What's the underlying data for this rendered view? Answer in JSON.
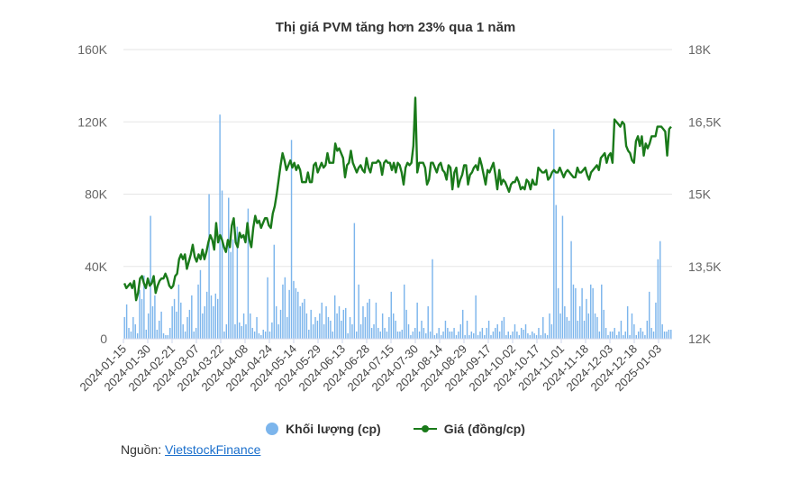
{
  "title": "Thị giá PVM tăng hơn 23% qua 1 năm",
  "legend": {
    "volume_label": "Khối lượng (cp)",
    "price_label": "Giá (đồng/cp)"
  },
  "source": {
    "prefix": "Nguồn: ",
    "link_text": "VietstockFinance"
  },
  "colors": {
    "volume": "#7cb5ec",
    "price": "#1a7a1a",
    "grid": "#e6e6e6"
  },
  "chart_data": {
    "type": "bar+line",
    "x_tick_labels": [
      "2024-01-15",
      "2024-01-30",
      "2024-02-21",
      "2024-03-07",
      "2024-03-22",
      "2024-04-08",
      "2024-04-24",
      "2024-05-14",
      "2024-05-29",
      "2024-06-13",
      "2024-06-28",
      "2024-07-15",
      "2024-07-30",
      "2024-08-14",
      "2024-08-29",
      "2024-09-17",
      "2024-10-02",
      "2024-10-17",
      "2024-11-01",
      "2024-11-18",
      "2024-12-03",
      "2024-12-18",
      "2025-01-03"
    ],
    "y_left": {
      "label": "",
      "ticks": [
        "0",
        "40K",
        "80K",
        "120K",
        "160K"
      ],
      "range": [
        0,
        160000
      ]
    },
    "y_right": {
      "label": "",
      "ticks": [
        "12K",
        "13,5K",
        "15K",
        "16,5K",
        "18K"
      ],
      "range": [
        12000,
        18000
      ]
    },
    "grid": true,
    "legend_position": "bottom",
    "series": [
      {
        "name": "Khối lượng (cp)",
        "type": "bar",
        "axis": "left",
        "values": [
          12000,
          19000,
          6000,
          4000,
          12000,
          8000,
          3000,
          27000,
          22000,
          35000,
          5000,
          14000,
          68000,
          18000,
          24000,
          5000,
          10000,
          15000,
          3000,
          2000,
          2000,
          6000,
          18000,
          22000,
          15000,
          30000,
          20000,
          8000,
          4000,
          12000,
          16000,
          24000,
          4000,
          6000,
          30000,
          38000,
          14000,
          18000,
          26000,
          80000,
          24000,
          18000,
          25000,
          22000,
          124000,
          82000,
          4000,
          8000,
          78000,
          48000,
          55000,
          8000,
          62000,
          9000,
          7000,
          14000,
          8000,
          72000,
          14000,
          6000,
          4000,
          12000,
          3000,
          2000,
          5000,
          4000,
          34000,
          4000,
          9000,
          52000,
          18000,
          8000,
          16000,
          30000,
          34000,
          12000,
          27000,
          110000,
          32000,
          28000,
          26000,
          18000,
          20000,
          22000,
          14000,
          5000,
          16000,
          8000,
          12000,
          10000,
          14000,
          20000,
          8000,
          18000,
          12000,
          10000,
          4000,
          24000,
          14000,
          18000,
          10000,
          16000,
          17000,
          3000,
          12000,
          8000,
          64000,
          4000,
          30000,
          8000,
          18000,
          12000,
          20000,
          22000,
          6000,
          8000,
          20000,
          6000,
          4000,
          14000,
          6000,
          4000,
          12000,
          26000,
          14000,
          10000,
          4000,
          4000,
          5000,
          30000,
          16000,
          8000,
          2000,
          4000,
          6000,
          20000,
          4000,
          10000,
          6000,
          3000,
          18000,
          4000,
          44000,
          2000,
          3000,
          6000,
          2000,
          4000,
          10000,
          6000,
          4000,
          4000,
          6000,
          2000,
          4000,
          8000,
          16000,
          2000,
          10000,
          2000,
          4000,
          3000,
          24000,
          2000,
          4000,
          6000,
          2000,
          6000,
          10000,
          2000,
          4000,
          6000,
          8000,
          4000,
          10000,
          12000,
          2000,
          4000,
          2000,
          4000,
          8000,
          4000,
          2000,
          6000,
          5000,
          8000,
          3000,
          2000,
          4000,
          3000,
          2000,
          6000,
          2000,
          12000,
          3000,
          2000,
          14000,
          8000,
          116000,
          74000,
          28000,
          14000,
          68000,
          18000,
          12000,
          10000,
          54000,
          30000,
          28000,
          10000,
          18000,
          28000,
          10000,
          22000,
          14000,
          30000,
          28000,
          14000,
          12000,
          4000,
          30000,
          16000,
          6000,
          2000,
          4000,
          4000,
          6000,
          2000,
          4000,
          10000,
          2000,
          4000,
          18000,
          2000,
          14000,
          8000,
          2000,
          4000,
          6000,
          4000,
          2000,
          10000,
          26000,
          6000,
          4000,
          20000,
          44000,
          54000,
          8000,
          4000,
          4000,
          5000,
          5000
        ]
      },
      {
        "name": "Giá (đồng/cp)",
        "type": "line",
        "axis": "right",
        "values": [
          13150,
          13050,
          13100,
          13150,
          13050,
          13200,
          12800,
          12950,
          13250,
          13300,
          13150,
          13050,
          13250,
          13100,
          13150,
          13300,
          12950,
          13100,
          13200,
          13250,
          13250,
          13350,
          13250,
          13100,
          13050,
          13100,
          13300,
          13350,
          13650,
          13750,
          13650,
          13750,
          13450,
          13600,
          13750,
          13950,
          13700,
          13600,
          13750,
          13650,
          13850,
          13650,
          13800,
          14000,
          14150,
          14050,
          13850,
          14400,
          14000,
          14150,
          14050,
          13900,
          13800,
          14050,
          13900,
          14350,
          14500,
          14000,
          13900,
          14200,
          14100,
          14150,
          14000,
          14400,
          14050,
          13900,
          14300,
          14550,
          14400,
          14450,
          14300,
          14400,
          14500,
          14500,
          14350,
          14300,
          14600,
          14750,
          15000,
          15300,
          15600,
          15850,
          15700,
          15500,
          15600,
          15700,
          15550,
          15650,
          15500,
          15600,
          15500,
          15250,
          15250,
          15250,
          15450,
          15250,
          15250,
          15600,
          15650,
          15450,
          15550,
          15650,
          15550,
          15600,
          15850,
          15650,
          15650,
          15650,
          16050,
          15900,
          15950,
          15850,
          15750,
          15350,
          15600,
          15650,
          15900,
          15650,
          15550,
          15450,
          15550,
          15600,
          15500,
          15450,
          15750,
          15550,
          15450,
          15650,
          15650,
          15650,
          15700,
          15650,
          15400,
          15650,
          15700,
          15650,
          15650,
          15500,
          15650,
          15450,
          15650,
          15600,
          15450,
          15200,
          15550,
          15650,
          15600,
          15650,
          16000,
          17000,
          15450,
          15650,
          15650,
          15650,
          15550,
          15200,
          15300,
          15650,
          15650,
          15550,
          15450,
          15600,
          15650,
          15500,
          15450,
          15300,
          15600,
          15550,
          15100,
          15450,
          15550,
          15150,
          15300,
          15400,
          15600,
          15600,
          15200,
          15400,
          15450,
          15550,
          15600,
          15500,
          15750,
          15600,
          15400,
          15200,
          15500,
          15450,
          15550,
          15650,
          15400,
          15100,
          15500,
          15200,
          15300,
          15250,
          15150,
          15050,
          15200,
          15250,
          15250,
          15350,
          15250,
          15100,
          15150,
          15100,
          15300,
          15250,
          15100,
          15300,
          15200,
          15200,
          15550,
          15500,
          15450,
          15450,
          15500,
          15300,
          15350,
          15450,
          15500,
          15450,
          15450,
          15550,
          15450,
          15350,
          15450,
          15500,
          15450,
          15400,
          15350,
          15350,
          15550,
          15450,
          15450,
          15500,
          15550,
          15400,
          15300,
          15450,
          15500,
          15550,
          15600,
          15500,
          15750,
          15800,
          15850,
          15650,
          15800,
          15850,
          15650,
          16550,
          16500,
          16450,
          16400,
          16500,
          16450,
          16000,
          15900,
          15850,
          15700,
          15650,
          16100,
          16200,
          16000,
          16200,
          15800,
          16050,
          15950,
          16050,
          16200,
          16200,
          16200,
          16400,
          16400,
          16400,
          16350,
          16300,
          15800,
          16350,
          16400
        ]
      }
    ]
  }
}
